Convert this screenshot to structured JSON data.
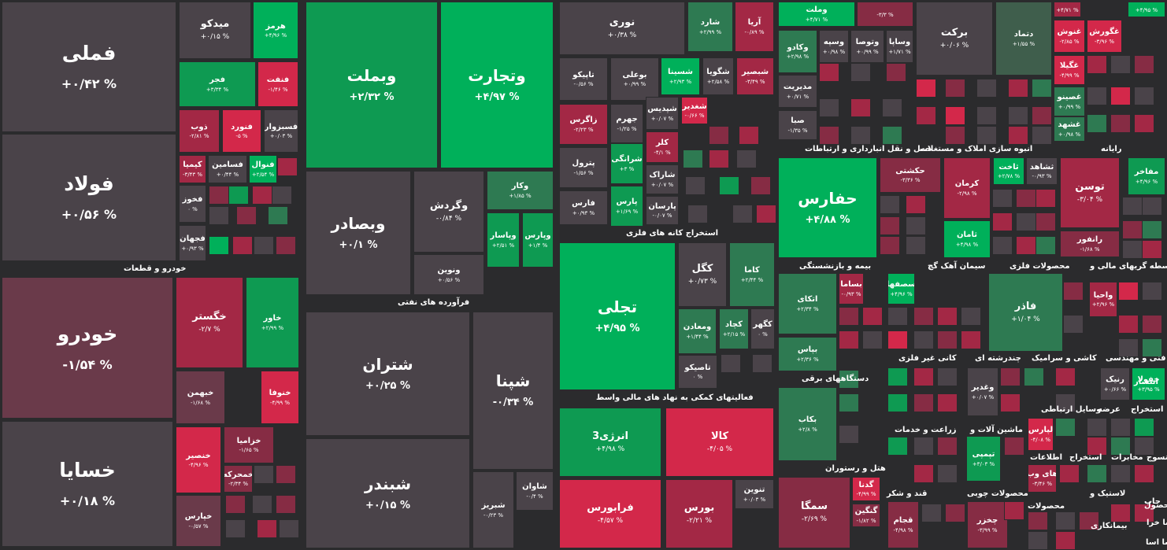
{
  "palette": {
    "strong_green": "#00b05a",
    "green": "#0e9a52",
    "mild_green": "#2e7a52",
    "weak_green": "#3f5e4c",
    "strong_red": "#d3284a",
    "red": "#a32845",
    "mild_red": "#862c44",
    "weak_red": "#6a3a4a",
    "neutral": "#4a4349",
    "background": "#2b2b2d"
  },
  "sectors": {
    "auto": "خودرو و قطعات",
    "refinery": "فرآورده های نفتی",
    "mining": "استخراج کانه های فلزی",
    "financial_support": "فعالیتهای کمکی به نهاد های مالی واسط",
    "transport": "حمل و نقل انبارداری و ارتباطات",
    "construction": "انبوه سازی املاک و مستغلات",
    "computer": "رایانه",
    "insurance": "بیمه و بازنشستگی",
    "cement": "سیمان آهک گچ",
    "metals": "محصولات فلزی",
    "brokers": "واسطه گریهای مالی و",
    "electrical": "دستگاههای برقی",
    "nonmetal_mining": "کانی غیر فلزی",
    "multi_industry": "چندرشته ای",
    "tiles": "کاشی و سرامیک",
    "engineering": "فنی و مهندسی",
    "telecom": "وسایل ارتباطی",
    "supply": "عرضه",
    "extraction": "استخراج",
    "agriculture": "زراعت و خدمات",
    "machinery": "ماشین آلات و",
    "info": "اطلاعات",
    "extraction2": "استخراج",
    "hotel": "هتل و رستوران",
    "sugar": "قند و شکر",
    "wood": "محصولات چوبی",
    "plastic": "لاستیک و",
    "products": "محصولات",
    "printing": "چاپ",
    "textile": "منسوج",
    "telecom2": "مخابرات",
    "publishing": "انتشار",
    "misc": "سا اسا",
    "misc2": "محصول",
    "misc3": "بیمانکاری",
    "misc4": "سا خرا"
  },
  "tiles": [
    {
      "sym": "فملی",
      "chg": "+۰/۴۲ %"
    },
    {
      "sym": "فولاد",
      "chg": "+۰/۵۶ %"
    },
    {
      "sym": "میدکو",
      "chg": "+۰/۱۵ %"
    },
    {
      "sym": "هرمز",
      "chg": "+۴/۹۶ %"
    },
    {
      "sym": "فجر",
      "chg": "+۳/۳۴ %"
    },
    {
      "sym": "فنفت",
      "chg": "-۱/۴۶ %"
    },
    {
      "sym": "ذوب",
      "chg": "-۲/۸۱ %"
    },
    {
      "sym": "فنورد",
      "chg": "-۵ %"
    },
    {
      "sym": "فسبزوار",
      "chg": "+۰/۰۳ %"
    },
    {
      "sym": "کیمیا",
      "chg": "-۳/۴۳ %"
    },
    {
      "sym": "فسامین",
      "chg": "+۰/۴۴ %"
    },
    {
      "sym": "فنوال",
      "chg": "+۲/۵۴ %"
    },
    {
      "sym": "فخوز",
      "chg": "۰ %"
    },
    {
      "sym": "فجهان",
      "chg": "+۰/۹۳ %"
    },
    {
      "sym": "خودرو",
      "chg": "-۱/۵۴ %"
    },
    {
      "sym": "خگستر",
      "chg": "-۲/۷ %"
    },
    {
      "sym": "خاور",
      "chg": "+۲/۹۹ %"
    },
    {
      "sym": "خبهمن",
      "chg": "-۱/۶۸ %"
    },
    {
      "sym": "خنوفا",
      "chg": "-۴/۹۹ %"
    },
    {
      "sym": "خسایا",
      "chg": "+۰/۱۸ %"
    },
    {
      "sym": "خنصیر",
      "chg": "-۴/۹۶ %"
    },
    {
      "sym": "خزامیا",
      "chg": "-۱/۶۵ %"
    },
    {
      "sym": "خمحرکه",
      "chg": "-۲/۳۴ %"
    },
    {
      "sym": "خپارس",
      "chg": "-۰/۵۷ %"
    },
    {
      "sym": "وبملت",
      "chg": "+۲/۳۲ %"
    },
    {
      "sym": "وتجارت",
      "chg": "+۴/۹۷ %"
    },
    {
      "sym": "وبصادر",
      "chg": "+۰/۱ %"
    },
    {
      "sym": "وگردش",
      "chg": "-۰/۸۴ %"
    },
    {
      "sym": "وکار",
      "chg": "+۱/۸۵ %"
    },
    {
      "sym": "وپاسار",
      "chg": "+۲/۵۱ %"
    },
    {
      "sym": "وپارس",
      "chg": "+۱/۴ %"
    },
    {
      "sym": "ونوین",
      "chg": "+۰/۵۶ %"
    },
    {
      "sym": "شتران",
      "chg": "+۰/۲۵ %"
    },
    {
      "sym": "شپنا",
      "chg": "-۰/۳۴ %"
    },
    {
      "sym": "شبندر",
      "chg": "+۰/۱۵ %"
    },
    {
      "sym": "شاوان",
      "chg": "-۰/۴ %"
    },
    {
      "sym": "شبریز",
      "chg": "-۰/۲۳ %"
    },
    {
      "sym": "نوری",
      "chg": "+۰/۳۸ %"
    },
    {
      "sym": "شارد",
      "chg": "+۲/۹۹ %"
    },
    {
      "sym": "آریا",
      "chg": "-۰/۸۹ %"
    },
    {
      "sym": "تاپیکو",
      "chg": "-۰/۵۶ %"
    },
    {
      "sym": "بوعلی",
      "chg": "+۰/۹۹ %"
    },
    {
      "sym": "شسینا",
      "chg": "+۲/۹۳ %"
    },
    {
      "sym": "شگویا",
      "chg": "+۲/۵۸ %"
    },
    {
      "sym": "شبصیر",
      "chg": "-۳/۴۹ %"
    },
    {
      "sym": "زاگرس",
      "chg": "-۲/۲۳ %"
    },
    {
      "sym": "جهرم",
      "chg": "-۱/۲۵ %"
    },
    {
      "sym": "شپدیس",
      "chg": "+۰/۰۷ %"
    },
    {
      "sym": "شغدیر",
      "chg": "-۰/۶۶ %"
    },
    {
      "sym": "پترول",
      "chg": "-۱/۵۶ %"
    },
    {
      "sym": "شرانگی",
      "chg": "+۳ %"
    },
    {
      "sym": "کلر",
      "chg": "-۴/۱ %"
    },
    {
      "sym": "شاراک",
      "chg": "+۰/۰۷ %"
    },
    {
      "sym": "فارس",
      "chg": "+۰/۹۳ %"
    },
    {
      "sym": "پارس",
      "chg": "+۱/۶۹ %"
    },
    {
      "sym": "پارسان",
      "chg": "-۰/۰۷ %"
    },
    {
      "sym": "تجلی",
      "chg": "+۴/۹۵ %"
    },
    {
      "sym": "کگل",
      "chg": "+۰/۷۳ %"
    },
    {
      "sym": "کاما",
      "chg": "+۲/۴۴ %"
    },
    {
      "sym": "ومعادن",
      "chg": "+۱/۴۴ %"
    },
    {
      "sym": "کچاد",
      "chg": "+۲/۱۵ %"
    },
    {
      "sym": "کگهر",
      "chg": "۰ %"
    },
    {
      "sym": "تاصیکو",
      "chg": "۰ %"
    },
    {
      "sym": "انرژی3",
      "chg": "+۴/۹۸ %"
    },
    {
      "sym": "کالا",
      "chg": "-۴/۰۵ %"
    },
    {
      "sym": "فرابورس",
      "chg": "-۴/۵۷ %"
    },
    {
      "sym": "بورس",
      "chg": "-۲/۲۱ %"
    },
    {
      "sym": "تنوین",
      "chg": "+۰/۰۳ %"
    },
    {
      "sym": "وکادو",
      "chg": "+۲/۹۸ %"
    },
    {
      "sym": "وسپه",
      "chg": "+۰/۹۸ %"
    },
    {
      "sym": "وتوصا",
      "chg": "+۰/۹۹ %"
    },
    {
      "sym": "وساپا",
      "chg": "+۱/۷۱ %"
    },
    {
      "sym": "برکت",
      "chg": "+۰/۰۶ %"
    },
    {
      "sym": "دتماد",
      "chg": "+۱/۵۵ %"
    },
    {
      "sym": "مدیریت",
      "chg": "+۰/۷۱ %"
    },
    {
      "sym": "صبا",
      "chg": "-۱/۳۵ %"
    },
    {
      "sym": "غنوش",
      "chg": "-۲/۸۵ %"
    },
    {
      "sym": "غگورش",
      "chg": "-۳/۹۶ %"
    },
    {
      "sym": "غگیلا",
      "chg": "-۴/۹۹ %"
    },
    {
      "sym": "غصینو",
      "chg": "+۰/۹۹ %"
    },
    {
      "sym": "غشهد",
      "chg": "+۰/۹۸ %"
    },
    {
      "sym": "حفارس",
      "chg": "+۴/۸۸ %"
    },
    {
      "sym": "حکشتی",
      "chg": "-۳/۳۶ %"
    },
    {
      "sym": "کرمان",
      "chg": "-۲/۹۸ %"
    },
    {
      "sym": "ثاخت",
      "chg": "+۲/۷۸ %"
    },
    {
      "sym": "ثشاهد",
      "chg": "-۰/۹۳ %"
    },
    {
      "sym": "ثامان",
      "chg": "+۴/۹۸ %"
    },
    {
      "sym": "توسن",
      "chg": "-۳/۰۴ %"
    },
    {
      "sym": "مفاخر",
      "chg": "+۴/۹۶ %"
    },
    {
      "sym": "رانفور",
      "chg": "-۱/۶۸ %"
    },
    {
      "sym": "اتکای",
      "chg": "+۲/۳۴ %"
    },
    {
      "sym": "بساما",
      "chg": "-۰/۹۳ %"
    },
    {
      "sym": "سصفها",
      "chg": "+۴/۹۶ %"
    },
    {
      "sym": "بپاس",
      "chg": "+۲/۳۶ %"
    },
    {
      "sym": "فاذر",
      "chg": "+۱/۰۴ %"
    },
    {
      "sym": "واحیا",
      "chg": "+۲/۹۶ %"
    },
    {
      "sym": "بکاب",
      "chg": "+۲/۸ %"
    },
    {
      "sym": "وغدیر",
      "chg": "+۰/۰۷ %"
    },
    {
      "sym": "رنیک",
      "chg": "+۰/۶۶ %"
    },
    {
      "sym": "خفولا",
      "chg": "+۳/۹۵ %"
    },
    {
      "sym": "لپارس",
      "chg": "-۴/۰۸ %"
    },
    {
      "sym": "تپمپی",
      "chg": "+۳/۰۳ %"
    },
    {
      "sym": "های وب",
      "chg": "-۳/۴۶ %"
    },
    {
      "sym": "سمگا",
      "chg": "-۲/۶۹ %"
    },
    {
      "sym": "گدنا",
      "chg": "-۴/۹۹ %"
    },
    {
      "sym": "گنگین",
      "chg": "-۱/۸۲ %"
    },
    {
      "sym": "قجام",
      "chg": "-۴/۹۸ %"
    },
    {
      "sym": "چخزر",
      "chg": "-۳/۹۹ %"
    },
    {
      "sym": "وملت",
      "chg": "+۴/۷۱ %"
    },
    {
      "sym": "",
      "chg": "-۳/۳ %"
    },
    {
      "sym": "",
      "chg": "+۴/۷۱ %"
    },
    {
      "sym": "",
      "chg": "+۴/۹۵ %"
    }
  ]
}
